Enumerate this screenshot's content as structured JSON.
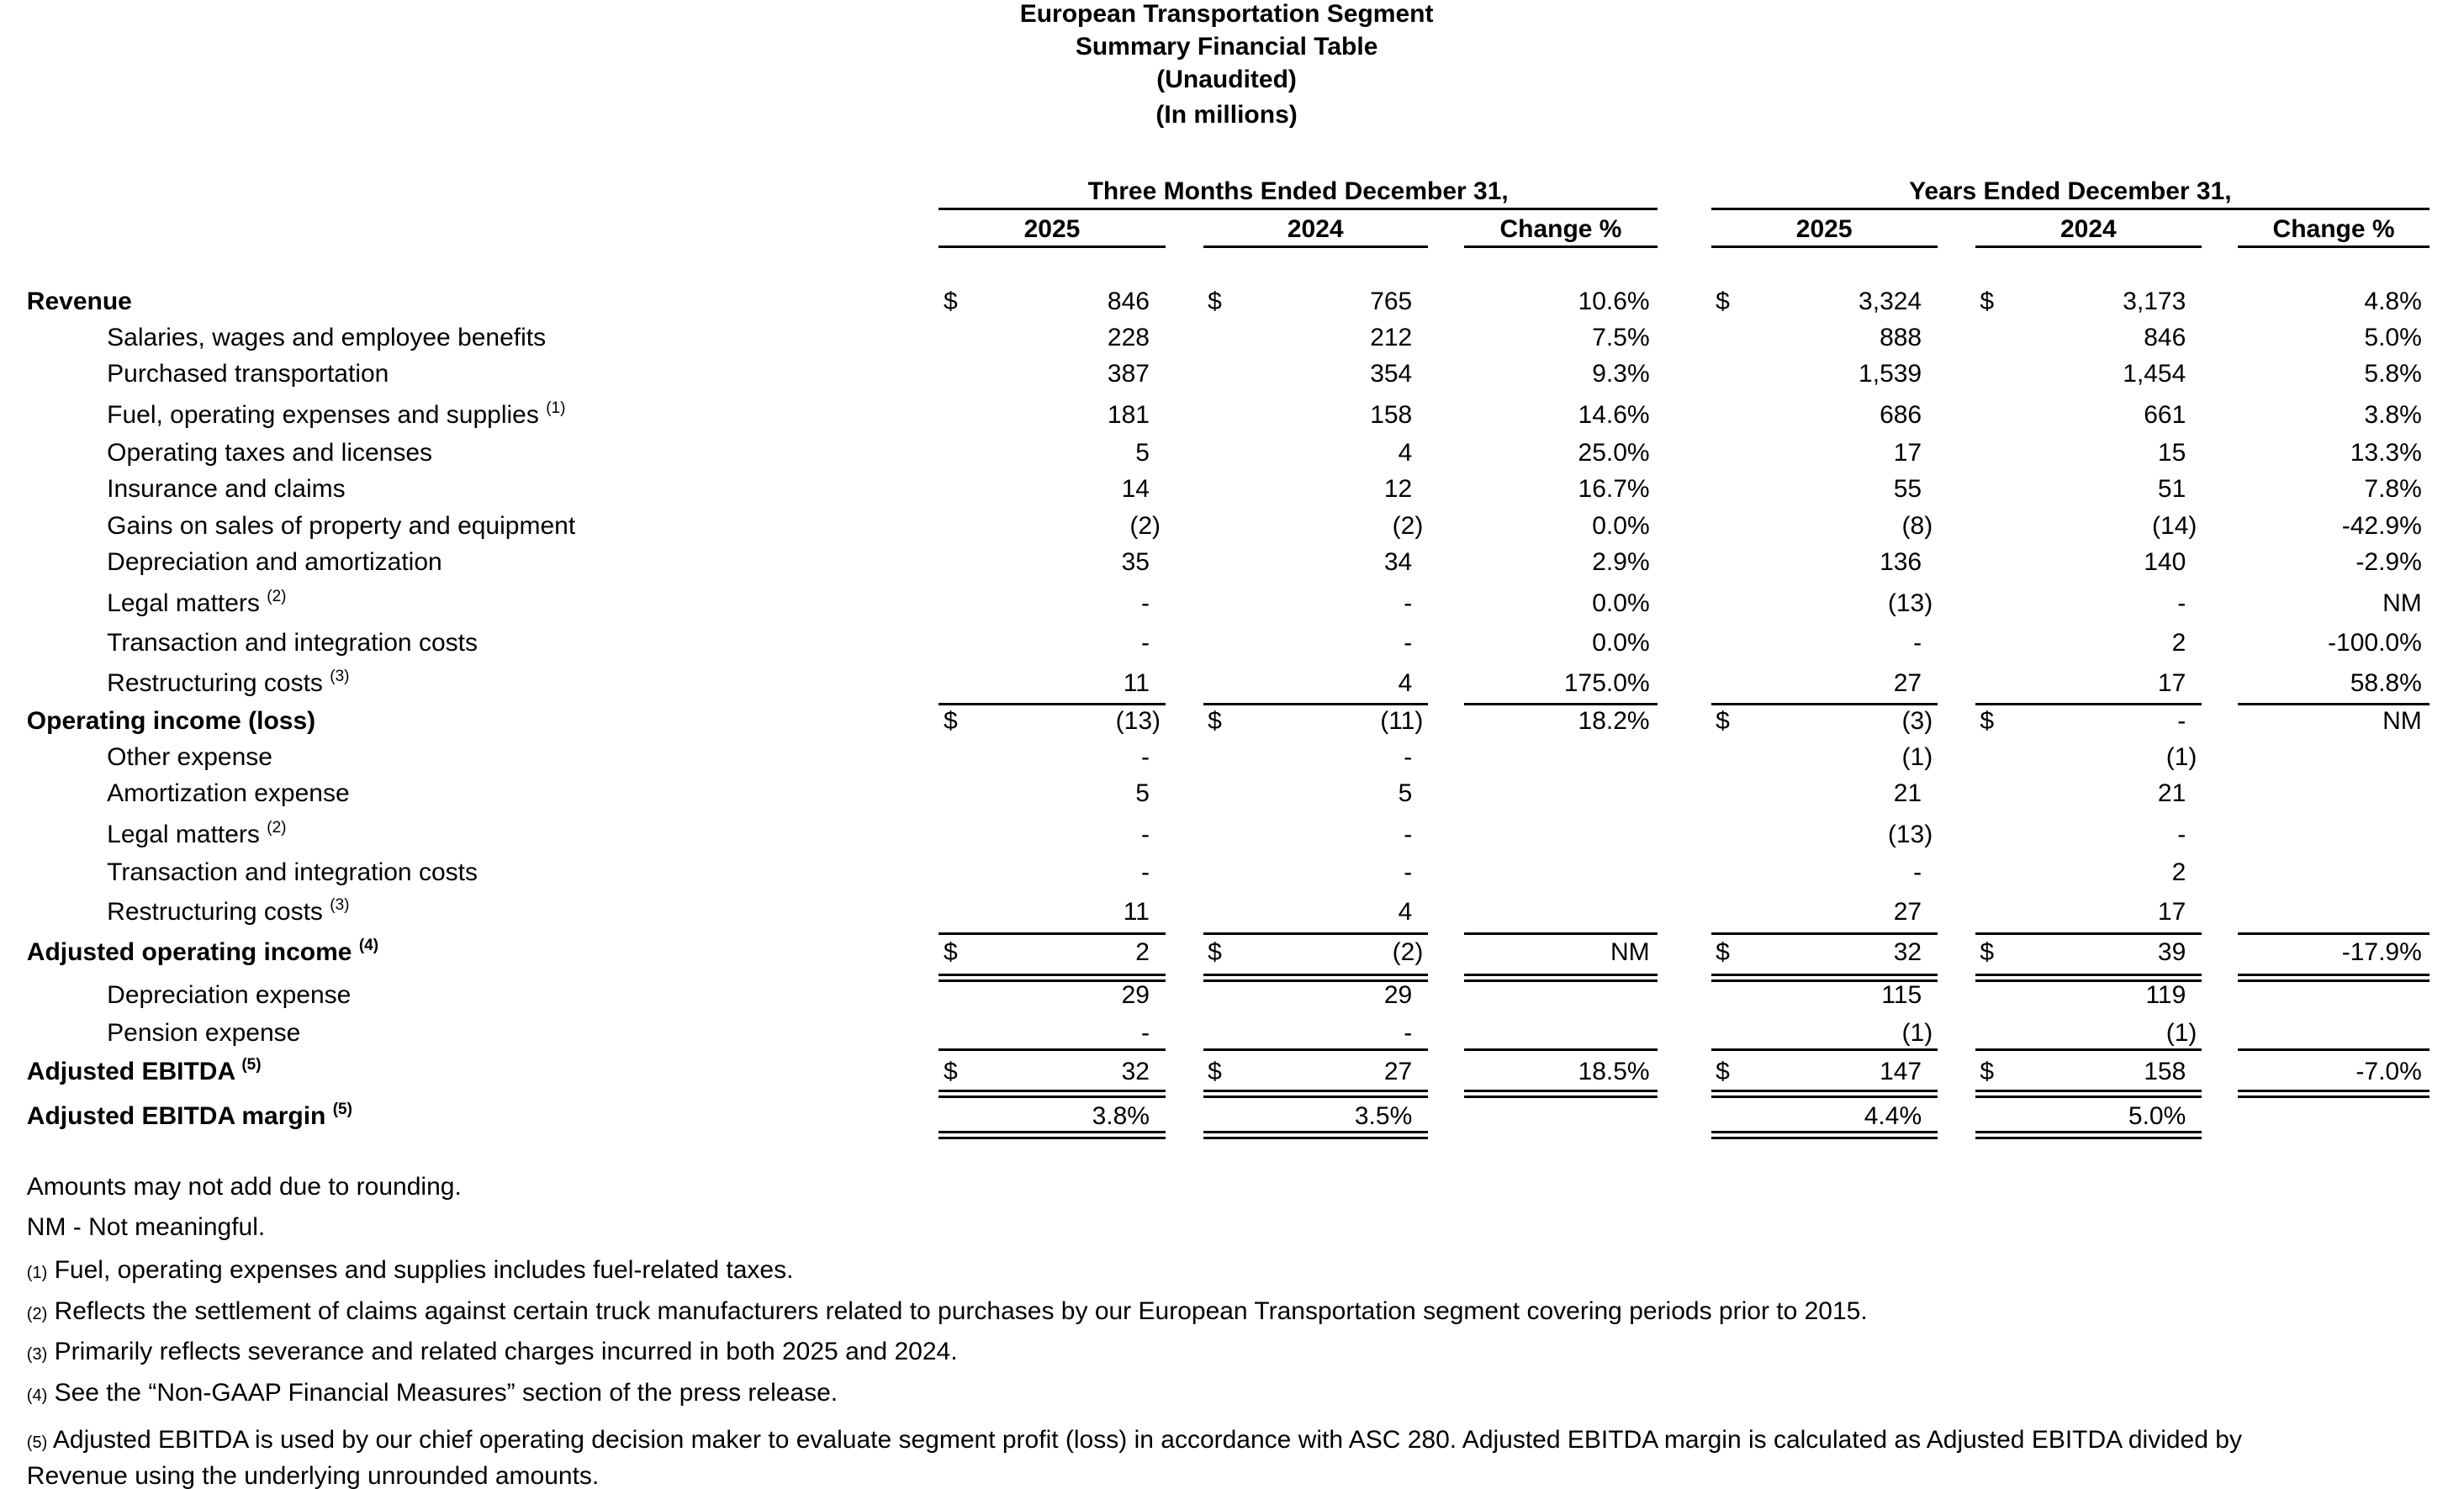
{
  "header": {
    "title_lines": [
      "European Transportation Segment",
      "Summary Financial Table",
      "(Unaudited)",
      "(In millions)"
    ]
  },
  "table": {
    "groups": [
      "Three Months Ended December 31,",
      "Years Ended December 31,"
    ],
    "columns": [
      "2025",
      "2024",
      "Change %",
      "2025",
      "2024",
      "Change %"
    ],
    "currency_symbol": "$",
    "rows": [
      {
        "label": "Revenue",
        "bold": true,
        "dollar": true,
        "values": [
          "846",
          "765",
          "10.6%",
          "3,324",
          "3,173",
          "4.8%"
        ]
      },
      {
        "label": "Salaries, wages and employee benefits",
        "values": [
          "228",
          "212",
          "7.5%",
          "888",
          "846",
          "5.0%"
        ]
      },
      {
        "label": "Purchased transportation",
        "values": [
          "387",
          "354",
          "9.3%",
          "1,539",
          "1,454",
          "5.8%"
        ]
      },
      {
        "label": "Fuel, operating expenses and supplies",
        "note": "(1)",
        "values": [
          "181",
          "158",
          "14.6%",
          "686",
          "661",
          "3.8%"
        ]
      },
      {
        "label": "Operating taxes and licenses",
        "values": [
          "5",
          "4",
          "25.0%",
          "17",
          "15",
          "13.3%"
        ]
      },
      {
        "label": "Insurance and claims",
        "values": [
          "14",
          "12",
          "16.7%",
          "55",
          "51",
          "7.8%"
        ]
      },
      {
        "label": "Gains on sales of property and equipment",
        "values": [
          "(2)",
          "(2)",
          "0.0%",
          "(8)",
          "(14)",
          "-42.9%"
        ]
      },
      {
        "label": "Depreciation and amortization",
        "values": [
          "35",
          "34",
          "2.9%",
          "136",
          "140",
          "-2.9%"
        ]
      },
      {
        "label": "Legal matters",
        "note": "(2)",
        "values": [
          "-",
          "-",
          "0.0%",
          "(13)",
          "-",
          "NM"
        ]
      },
      {
        "label": "Transaction and integration costs",
        "values": [
          "-",
          "-",
          "0.0%",
          "-",
          "2",
          "-100.0%"
        ]
      },
      {
        "label": "Restructuring costs",
        "note": "(3)",
        "values": [
          "11",
          "4",
          "175.0%",
          "27",
          "17",
          "58.8%"
        ]
      },
      {
        "label": "Operating income (loss)",
        "bold": true,
        "dollar": true,
        "values": [
          "(13)",
          "(11)",
          "18.2%",
          "(3)",
          "-",
          "NM"
        ]
      },
      {
        "label": "Other expense",
        "values": [
          "-",
          "-",
          null,
          "(1)",
          "(1)",
          null
        ]
      },
      {
        "label": "Amortization expense",
        "values": [
          "5",
          "5",
          null,
          "21",
          "21",
          null
        ]
      },
      {
        "label": "Legal matters",
        "note": "(2)",
        "values": [
          "-",
          "-",
          null,
          "(13)",
          "-",
          null
        ]
      },
      {
        "label": "Transaction and integration costs",
        "values": [
          "-",
          "-",
          null,
          "-",
          "2",
          null
        ]
      },
      {
        "label": "Restructuring costs",
        "note": "(3)",
        "values": [
          "11",
          "4",
          null,
          "27",
          "17",
          null
        ]
      },
      {
        "label": "Adjusted operating income",
        "note": "(4)",
        "bold": true,
        "dollar": true,
        "values": [
          "2",
          "(2)",
          "NM",
          "32",
          "39",
          "-17.9%"
        ]
      },
      {
        "label": "Depreciation expense",
        "values": [
          "29",
          "29",
          null,
          "115",
          "119",
          null
        ]
      },
      {
        "label": "Pension expense",
        "values": [
          "-",
          "-",
          null,
          "(1)",
          "(1)",
          null
        ]
      },
      {
        "label": "Adjusted EBITDA",
        "note": "(5)",
        "bold": true,
        "dollar": true,
        "values": [
          "32",
          "27",
          "18.5%",
          "147",
          "158",
          "-7.0%"
        ]
      },
      {
        "label": "Adjusted EBITDA margin",
        "note": "(5)",
        "bold": true,
        "values": [
          "3.8%",
          "3.5%",
          null,
          "4.4%",
          "5.0%",
          null
        ]
      }
    ]
  },
  "footnotes": [
    {
      "text": "Amounts may not add due to rounding."
    },
    {
      "text": "NM - Not meaningful."
    },
    {
      "marker": "(1)",
      "text": "Fuel, operating expenses and supplies includes fuel-related taxes."
    },
    {
      "marker": "(2)",
      "text": "Reflects the settlement of claims against certain truck manufacturers related to purchases by our European Transportation segment covering periods prior to 2015."
    },
    {
      "marker": "(3)",
      "text": "Primarily reflects severance and related charges incurred in both 2025 and 2024."
    },
    {
      "marker": "(4)",
      "text": "See the “Non-GAAP Financial Measures” section of the press release."
    },
    {
      "marker": "(5)",
      "text": "Adjusted EBITDA is used by our chief operating decision maker to evaluate segment profit (loss) in accordance with ASC 280. Adjusted EBITDA margin is calculated as Adjusted EBITDA divided by Revenue using the underlying unrounded amounts."
    }
  ]
}
